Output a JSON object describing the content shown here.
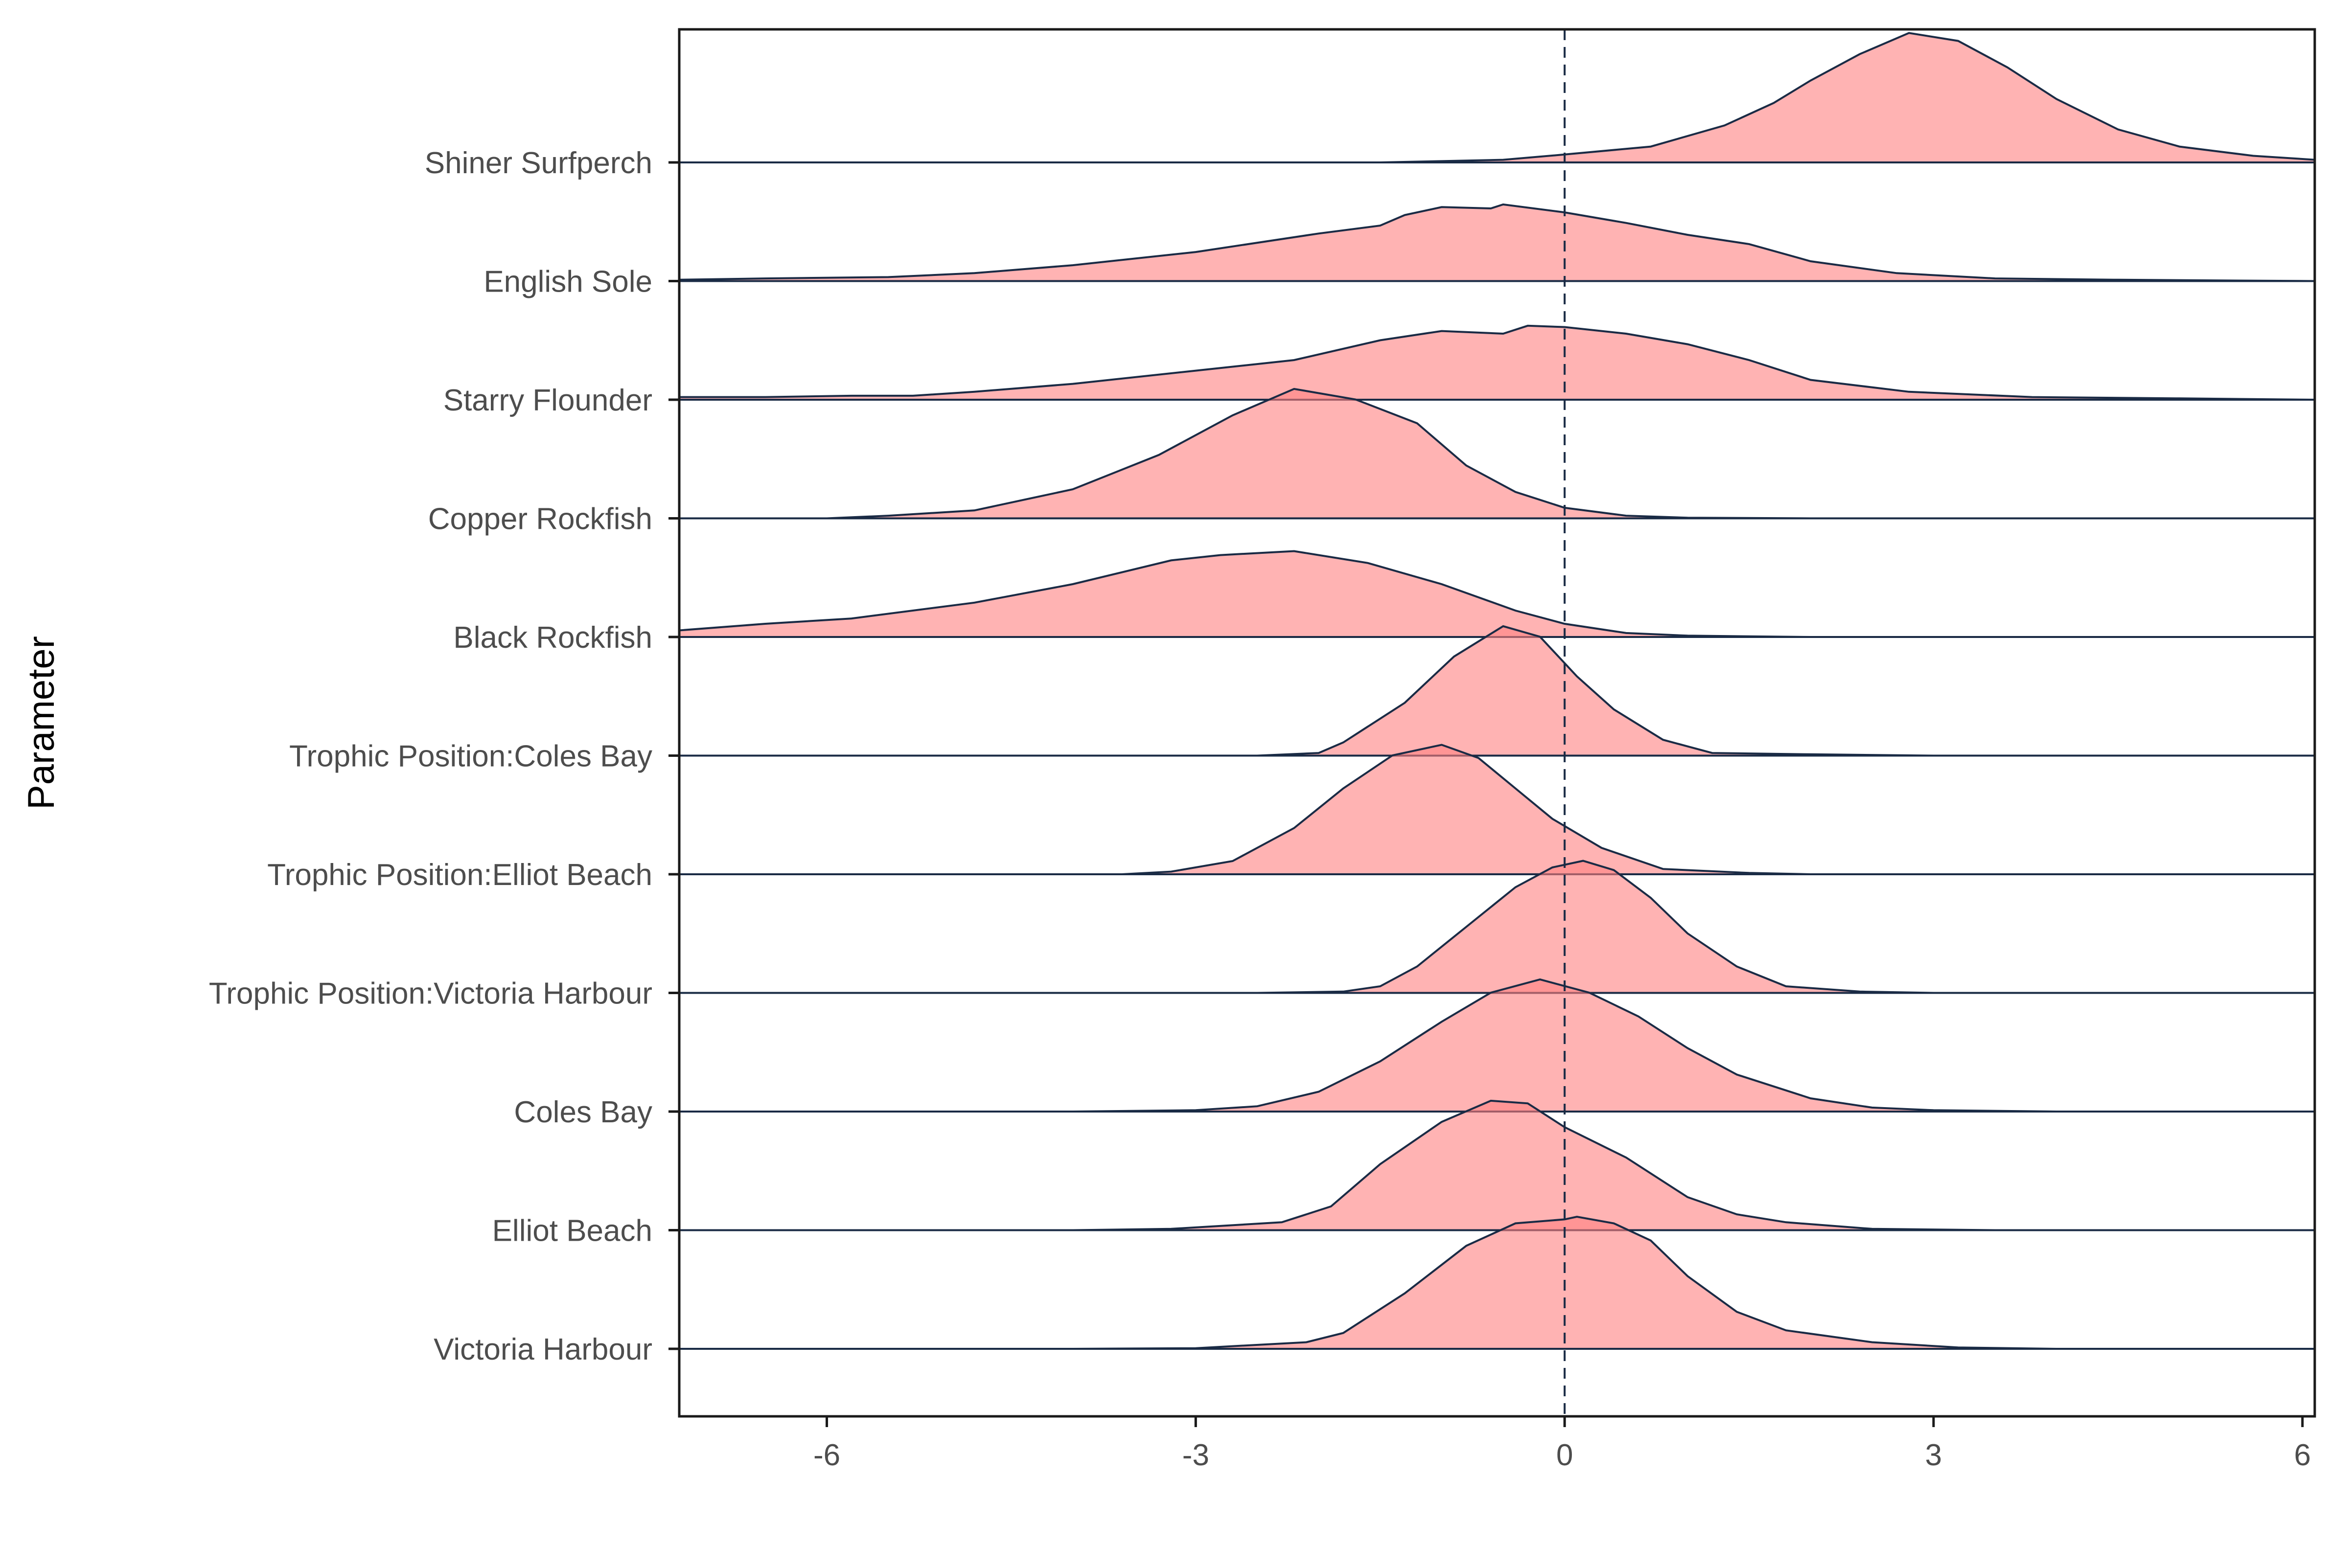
{
  "chart_data": {
    "type": "ridgeline",
    "title": "",
    "xlabel": "",
    "ylabel": "Parameter",
    "xlim": [
      -7.2,
      6.1
    ],
    "x_ticks": [
      -6,
      -3,
      0,
      3,
      6
    ],
    "x_tick_labels": [
      "-6",
      "-3",
      "0",
      "3",
      "6"
    ],
    "reference_line": {
      "x": 0,
      "style": "dashed"
    },
    "grid": false,
    "fill_color": "#ff8080",
    "fill_opacity": 0.6,
    "line_color": "#1a2b45",
    "categories": [
      "Victoria Harbour",
      "Elliot Beach",
      "Coles Bay",
      "Trophic Position:Victoria Harbour",
      "Trophic Position:Elliot Beach",
      "Trophic Position:Coles Bay",
      "Black Rockfish",
      "Copper Rockfish",
      "Starry Flounder",
      "English Sole",
      "Shiner Surfperch"
    ],
    "series": [
      {
        "label": "Victoria Harbour",
        "points": [
          [
            -7.2,
            0
          ],
          [
            -4,
            0
          ],
          [
            -3,
            0.005
          ],
          [
            -2.1,
            0.05
          ],
          [
            -1.8,
            0.12
          ],
          [
            -1.3,
            0.42
          ],
          [
            -0.8,
            0.78
          ],
          [
            -0.4,
            0.95
          ],
          [
            0,
            0.98
          ],
          [
            0.1,
            1.0
          ],
          [
            0.4,
            0.95
          ],
          [
            0.7,
            0.82
          ],
          [
            1.0,
            0.55
          ],
          [
            1.4,
            0.28
          ],
          [
            1.8,
            0.14
          ],
          [
            2.5,
            0.05
          ],
          [
            3.2,
            0.01
          ],
          [
            4,
            0
          ],
          [
            6.1,
            0
          ]
        ]
      },
      {
        "label": "Elliot Beach",
        "points": [
          [
            -7.2,
            0
          ],
          [
            -4,
            0
          ],
          [
            -3.2,
            0.01
          ],
          [
            -2.3,
            0.06
          ],
          [
            -1.9,
            0.18
          ],
          [
            -1.5,
            0.5
          ],
          [
            -1.0,
            0.82
          ],
          [
            -0.6,
            0.98
          ],
          [
            -0.3,
            0.96
          ],
          [
            0.0,
            0.78
          ],
          [
            0.5,
            0.55
          ],
          [
            1.0,
            0.25
          ],
          [
            1.4,
            0.12
          ],
          [
            1.8,
            0.06
          ],
          [
            2.5,
            0.01
          ],
          [
            3.5,
            0
          ],
          [
            6.1,
            0
          ]
        ]
      },
      {
        "label": "Coles Bay",
        "points": [
          [
            -7.2,
            0
          ],
          [
            -4,
            0
          ],
          [
            -3,
            0.01
          ],
          [
            -2.5,
            0.04
          ],
          [
            -2.0,
            0.15
          ],
          [
            -1.5,
            0.38
          ],
          [
            -1.0,
            0.68
          ],
          [
            -0.6,
            0.9
          ],
          [
            -0.2,
            1.0
          ],
          [
            0.2,
            0.9
          ],
          [
            0.6,
            0.72
          ],
          [
            1.0,
            0.48
          ],
          [
            1.4,
            0.28
          ],
          [
            2.0,
            0.1
          ],
          [
            2.5,
            0.03
          ],
          [
            3,
            0.01
          ],
          [
            4,
            0
          ],
          [
            6.1,
            0
          ]
        ]
      },
      {
        "label": "Trophic Position:Victoria Harbour",
        "points": [
          [
            -7.2,
            0
          ],
          [
            -2.5,
            0
          ],
          [
            -1.8,
            0.01
          ],
          [
            -1.5,
            0.05
          ],
          [
            -1.2,
            0.2
          ],
          [
            -0.8,
            0.5
          ],
          [
            -0.4,
            0.8
          ],
          [
            -0.1,
            0.95
          ],
          [
            0.15,
            1.0
          ],
          [
            0.4,
            0.93
          ],
          [
            0.7,
            0.72
          ],
          [
            1.0,
            0.45
          ],
          [
            1.4,
            0.2
          ],
          [
            1.8,
            0.05
          ],
          [
            2.4,
            0.01
          ],
          [
            3,
            0
          ],
          [
            6.1,
            0
          ]
        ]
      },
      {
        "label": "Trophic Position:Elliot Beach",
        "points": [
          [
            -7.2,
            0
          ],
          [
            -3.6,
            0
          ],
          [
            -3.2,
            0.02
          ],
          [
            -2.7,
            0.1
          ],
          [
            -2.2,
            0.35
          ],
          [
            -1.8,
            0.65
          ],
          [
            -1.4,
            0.9
          ],
          [
            -1.0,
            0.98
          ],
          [
            -0.7,
            0.88
          ],
          [
            -0.4,
            0.65
          ],
          [
            -0.1,
            0.42
          ],
          [
            0.3,
            0.2
          ],
          [
            0.8,
            0.04
          ],
          [
            1.5,
            0.01
          ],
          [
            2,
            0
          ],
          [
            6.1,
            0
          ]
        ]
      },
      {
        "label": "Trophic Position:Coles Bay",
        "points": [
          [
            -7.2,
            0
          ],
          [
            -2.5,
            0
          ],
          [
            -2.0,
            0.02
          ],
          [
            -1.8,
            0.1
          ],
          [
            -1.3,
            0.4
          ],
          [
            -0.9,
            0.75
          ],
          [
            -0.5,
            0.98
          ],
          [
            -0.2,
            0.9
          ],
          [
            0.1,
            0.6
          ],
          [
            0.4,
            0.35
          ],
          [
            0.8,
            0.12
          ],
          [
            1.2,
            0.02
          ],
          [
            2,
            0.01
          ],
          [
            3,
            0
          ],
          [
            6.1,
            0
          ]
        ]
      },
      {
        "label": "Black Rockfish",
        "points": [
          [
            -7.2,
            0.05
          ],
          [
            -6.5,
            0.1
          ],
          [
            -5.8,
            0.14
          ],
          [
            -4.8,
            0.26
          ],
          [
            -4.0,
            0.4
          ],
          [
            -3.2,
            0.58
          ],
          [
            -2.8,
            0.62
          ],
          [
            -2.2,
            0.65
          ],
          [
            -1.6,
            0.56
          ],
          [
            -1.0,
            0.4
          ],
          [
            -0.4,
            0.2
          ],
          [
            0.0,
            0.1
          ],
          [
            0.5,
            0.03
          ],
          [
            1.0,
            0.01
          ],
          [
            2,
            0
          ],
          [
            6.1,
            0
          ]
        ]
      },
      {
        "label": "Copper Rockfish",
        "points": [
          [
            -7.2,
            0
          ],
          [
            -6.0,
            0
          ],
          [
            -5.5,
            0.02
          ],
          [
            -4.8,
            0.06
          ],
          [
            -4.0,
            0.22
          ],
          [
            -3.3,
            0.48
          ],
          [
            -2.7,
            0.78
          ],
          [
            -2.2,
            0.98
          ],
          [
            -1.7,
            0.9
          ],
          [
            -1.2,
            0.72
          ],
          [
            -0.8,
            0.4
          ],
          [
            -0.4,
            0.2
          ],
          [
            0.0,
            0.08
          ],
          [
            0.5,
            0.02
          ],
          [
            1.0,
            0.005
          ],
          [
            2,
            0
          ],
          [
            6.1,
            0
          ]
        ]
      },
      {
        "label": "Starry Flounder",
        "points": [
          [
            -7.2,
            0.02
          ],
          [
            -6.5,
            0.02
          ],
          [
            -5.8,
            0.03
          ],
          [
            -5.3,
            0.03
          ],
          [
            -4.8,
            0.06
          ],
          [
            -4.0,
            0.12
          ],
          [
            -3.0,
            0.22
          ],
          [
            -2.2,
            0.3
          ],
          [
            -1.5,
            0.45
          ],
          [
            -1.0,
            0.52
          ],
          [
            -0.5,
            0.5
          ],
          [
            -0.3,
            0.56
          ],
          [
            0,
            0.55
          ],
          [
            0.5,
            0.5
          ],
          [
            1.0,
            0.42
          ],
          [
            1.5,
            0.3
          ],
          [
            2.0,
            0.15
          ],
          [
            2.8,
            0.06
          ],
          [
            3.8,
            0.02
          ],
          [
            5,
            0.01
          ],
          [
            6.1,
            0
          ]
        ]
      },
      {
        "label": "English Sole",
        "points": [
          [
            -7.2,
            0.01
          ],
          [
            -6.5,
            0.02
          ],
          [
            -5.5,
            0.03
          ],
          [
            -4.8,
            0.06
          ],
          [
            -4.0,
            0.12
          ],
          [
            -3.0,
            0.22
          ],
          [
            -2.0,
            0.36
          ],
          [
            -1.5,
            0.42
          ],
          [
            -1.3,
            0.5
          ],
          [
            -1.0,
            0.56
          ],
          [
            -0.6,
            0.55
          ],
          [
            -0.5,
            0.58
          ],
          [
            0.0,
            0.52
          ],
          [
            0.5,
            0.44
          ],
          [
            1.0,
            0.35
          ],
          [
            1.5,
            0.28
          ],
          [
            2.0,
            0.15
          ],
          [
            2.7,
            0.06
          ],
          [
            3.5,
            0.02
          ],
          [
            4.5,
            0.01
          ],
          [
            6.1,
            0
          ]
        ]
      },
      {
        "label": "Shiner Surfperch",
        "points": [
          [
            -7.2,
            0
          ],
          [
            -3.0,
            0
          ],
          [
            -1.5,
            0
          ],
          [
            -0.5,
            0.02
          ],
          [
            0.0,
            0.06
          ],
          [
            0.7,
            0.12
          ],
          [
            1.3,
            0.28
          ],
          [
            1.7,
            0.45
          ],
          [
            2.0,
            0.62
          ],
          [
            2.4,
            0.82
          ],
          [
            2.8,
            0.98
          ],
          [
            3.2,
            0.92
          ],
          [
            3.6,
            0.72
          ],
          [
            4.0,
            0.48
          ],
          [
            4.5,
            0.25
          ],
          [
            5.0,
            0.12
          ],
          [
            5.6,
            0.05
          ],
          [
            6.1,
            0.02
          ]
        ]
      }
    ]
  }
}
